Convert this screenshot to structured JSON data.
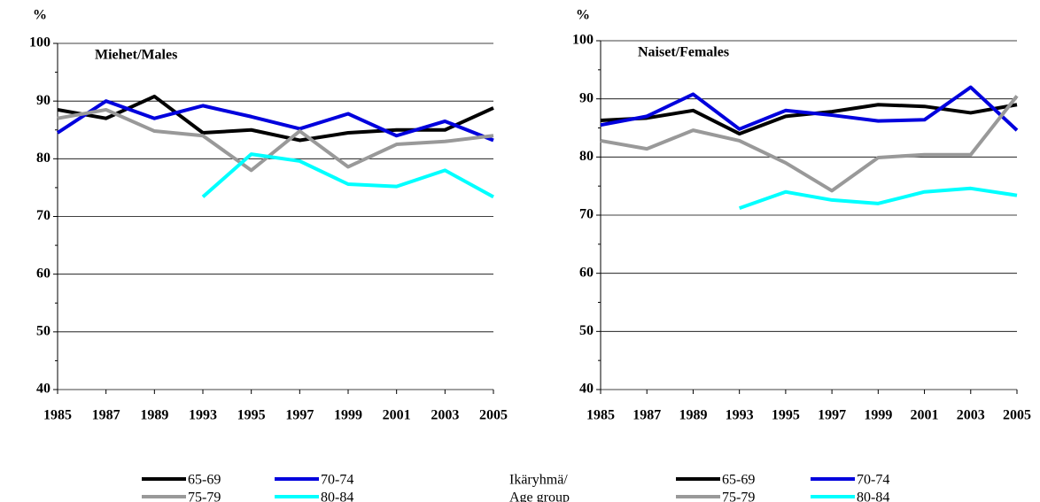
{
  "chart_data": [
    {
      "type": "line",
      "title": "Miehet/Males",
      "y_label": "%",
      "categories": [
        "1985",
        "1987",
        "1989",
        "1993",
        "1995",
        "1997",
        "1999",
        "2001",
        "2003",
        "2005"
      ],
      "ylim": [
        40,
        100
      ],
      "yticks": [
        40,
        50,
        60,
        70,
        80,
        90,
        100
      ],
      "grid": true,
      "series": [
        {
          "name": "65-69",
          "color": "#000000",
          "values": [
            88.5,
            87,
            90.8,
            84.5,
            85,
            83.2,
            84.5,
            85,
            85,
            88.8
          ]
        },
        {
          "name": "70-74",
          "color": "#0000dd",
          "values": [
            84.5,
            90,
            87,
            89.2,
            87.3,
            85.2,
            87.8,
            84,
            86.5,
            83.2
          ]
        },
        {
          "name": "75-79",
          "color": "#999999",
          "values": [
            87,
            88.5,
            84.8,
            84,
            78,
            84.8,
            78.6,
            82.5,
            83,
            84
          ]
        },
        {
          "name": "80-84",
          "color": "#00ffff",
          "values": [
            null,
            null,
            null,
            73.4,
            80.8,
            79.6,
            75.6,
            75.2,
            78,
            73.4
          ]
        }
      ]
    },
    {
      "type": "line",
      "title": "Naiset/Females",
      "y_label": "%",
      "legend_title": [
        "Ikäryhmä/",
        "Age group"
      ],
      "categories": [
        "1985",
        "1987",
        "1989",
        "1993",
        "1995",
        "1997",
        "1999",
        "2001",
        "2003",
        "2005"
      ],
      "ylim": [
        40,
        100
      ],
      "yticks": [
        40,
        50,
        60,
        70,
        80,
        90,
        100
      ],
      "grid": true,
      "series": [
        {
          "name": "65-69",
          "color": "#000000",
          "values": [
            86.3,
            86.7,
            88,
            84,
            87,
            87.8,
            89,
            88.7,
            87.6,
            89
          ]
        },
        {
          "name": "70-74",
          "color": "#0000dd",
          "values": [
            85.5,
            87,
            90.8,
            84.8,
            88,
            87.2,
            86.2,
            86.4,
            92,
            84.6
          ]
        },
        {
          "name": "75-79",
          "color": "#999999",
          "values": [
            82.8,
            81.4,
            84.6,
            82.8,
            79,
            74.2,
            79.9,
            80.4,
            80.4,
            90.5
          ]
        },
        {
          "name": "80-84",
          "color": "#00ffff",
          "values": [
            null,
            null,
            null,
            71.2,
            74,
            72.6,
            72,
            74,
            74.6,
            73.4
          ]
        }
      ]
    }
  ]
}
